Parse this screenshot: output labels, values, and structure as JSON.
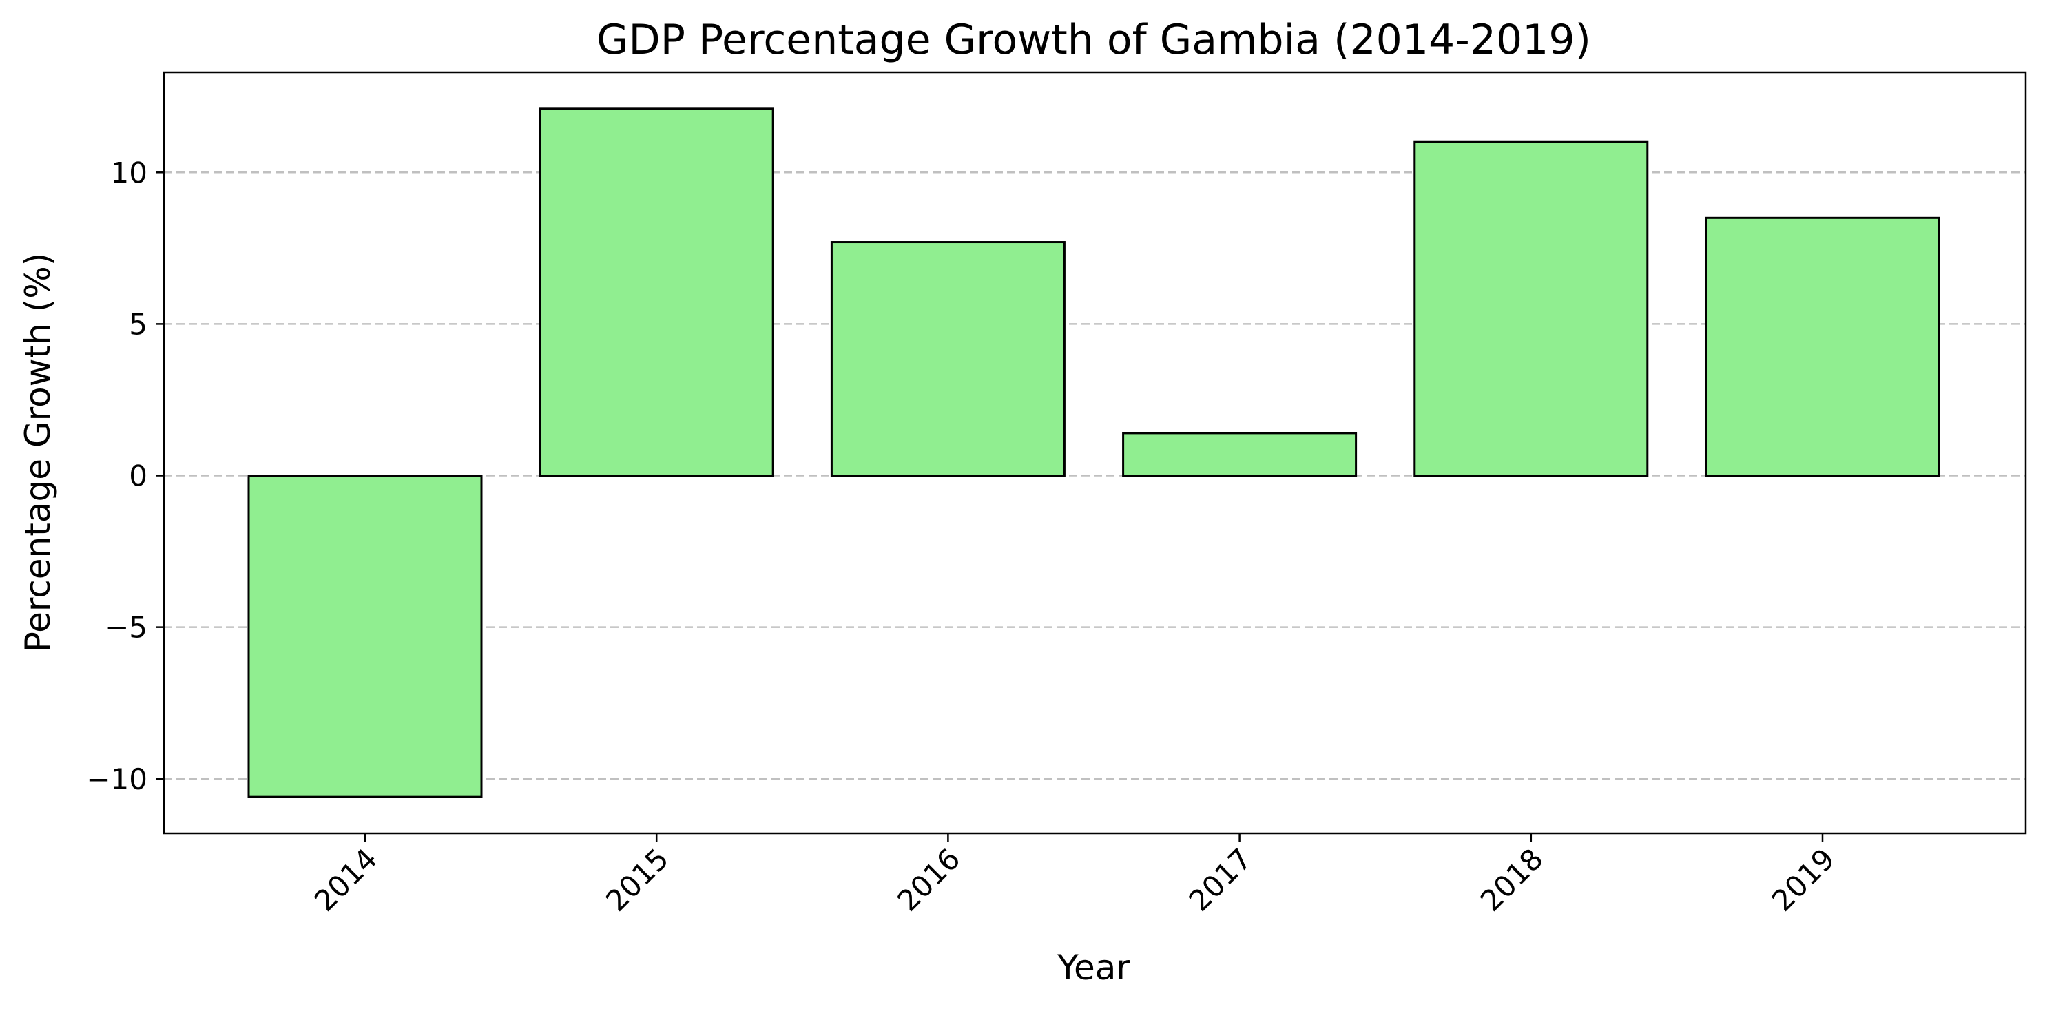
{
  "chart_data": {
    "type": "bar",
    "title": "GDP Percentage Growth of Gambia (2014-2019)",
    "xlabel": "Year",
    "ylabel": "Percentage Growth (%)",
    "categories": [
      "2014",
      "2015",
      "2016",
      "2017",
      "2018",
      "2019"
    ],
    "values": [
      -10.6,
      12.1,
      7.7,
      1.4,
      11.0,
      8.5
    ],
    "ylim": [
      -11.8,
      13.3
    ],
    "yticks": [
      -10,
      -5,
      0,
      5,
      10
    ],
    "ytick_labels": [
      "−10",
      "−5",
      "0",
      "5",
      "10"
    ],
    "grid": "horizontal-dashed",
    "legend": "none",
    "colors": {
      "bar_fill": "#90EE90",
      "bar_edge": "#000000",
      "grid": "#c0c0c0"
    }
  }
}
